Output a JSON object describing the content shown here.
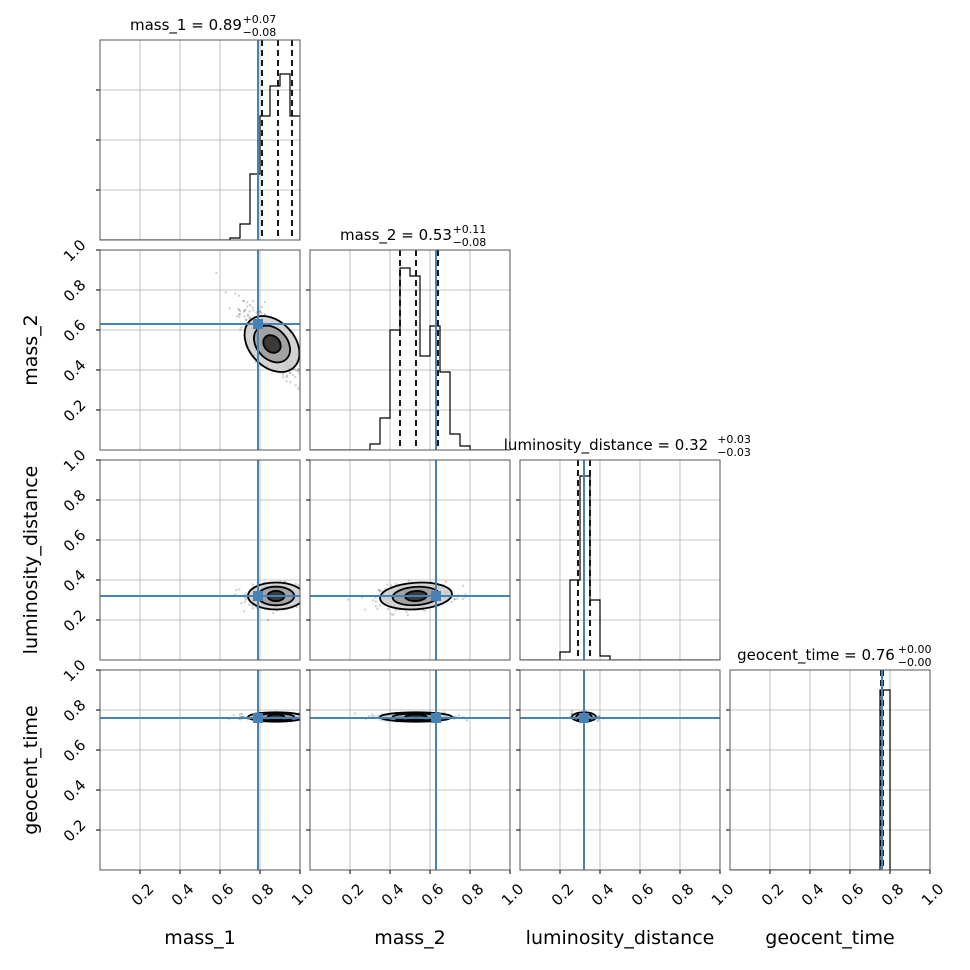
{
  "chart_data": {
    "type": "corner",
    "parameters": [
      "mass_1",
      "mass_2",
      "luminosity_distance",
      "geocent_time"
    ],
    "axis_labels": [
      "mass_1",
      "mass_2",
      "luminosity_distance",
      "geocent_time"
    ],
    "axis_range": [
      0,
      1
    ],
    "ticks": [
      0.2,
      0.4,
      0.6,
      0.8,
      1.0
    ],
    "tick_labels": [
      "0.2",
      "0.4",
      "0.6",
      "0.8",
      "1.0"
    ],
    "truths": [
      0.79,
      0.63,
      0.32,
      0.76
    ],
    "truth_color": "#4682b4",
    "grid": true,
    "marginals": [
      {
        "parameter": "mass_1",
        "title": "mass_1 = 0.89",
        "title_main": "mass_1 = 0.89",
        "title_up": "+0.07",
        "title_down": "−0.08",
        "median": 0.89,
        "err_plus": 0.07,
        "err_minus": 0.08,
        "quantiles": [
          0.81,
          0.89,
          0.96
        ],
        "hist_edges": [
          0.65,
          0.7,
          0.75,
          0.8,
          0.85,
          0.9,
          0.95,
          1.0
        ],
        "hist_counts": [
          0.01,
          0.08,
          0.33,
          0.62,
          0.77,
          0.83,
          0.62
        ],
        "hist_ylim": [
          0,
          1.0
        ],
        "ytick_values": [
          0.25,
          0.5,
          0.75
        ]
      },
      {
        "parameter": "mass_2",
        "title_main": "mass_2 = 0.53",
        "title_up": "+0.11",
        "title_down": "−0.08",
        "median": 0.53,
        "err_plus": 0.11,
        "err_minus": 0.08,
        "quantiles": [
          0.45,
          0.53,
          0.64
        ],
        "hist_edges": [
          0.3,
          0.35,
          0.4,
          0.45,
          0.5,
          0.55,
          0.6,
          0.65,
          0.7,
          0.75,
          0.8
        ],
        "hist_counts": [
          0.03,
          0.16,
          0.6,
          0.91,
          0.87,
          0.47,
          0.62,
          0.39,
          0.08,
          0.02
        ],
        "hist_ylim": [
          0,
          1.0
        ],
        "ytick_values": [
          0.2,
          0.4,
          0.6,
          0.8
        ]
      },
      {
        "parameter": "luminosity_distance",
        "title_main": "luminosity_distance = 0.32",
        "title_up": "+0.03",
        "title_down": "−0.03",
        "median": 0.32,
        "err_plus": 0.03,
        "err_minus": 0.03,
        "quantiles": [
          0.29,
          0.32,
          0.35
        ],
        "hist_edges": [
          0.2,
          0.25,
          0.3,
          0.35,
          0.4,
          0.45
        ],
        "hist_counts": [
          0.04,
          0.4,
          0.92,
          0.3,
          0.02
        ],
        "hist_ylim": [
          0,
          1.0
        ],
        "ytick_values": [
          0.2,
          0.4,
          0.6,
          0.8
        ]
      },
      {
        "parameter": "geocent_time",
        "title_main": "geocent_time = 0.76",
        "title_up": "+0.00",
        "title_down": "−0.00",
        "median": 0.76,
        "err_plus": 0.0,
        "err_minus": 0.0,
        "quantiles": [
          0.755,
          0.76,
          0.765
        ],
        "hist_edges": [
          0.75,
          0.8
        ],
        "hist_counts": [
          0.9
        ],
        "hist_ylim": [
          0,
          1.0
        ],
        "ytick_values": [
          0.2,
          0.4,
          0.6,
          0.8
        ]
      }
    ],
    "joint_panels": [
      {
        "row": 1,
        "col": 0,
        "center": [
          0.86,
          0.53
        ],
        "spread": [
          0.08,
          0.1
        ],
        "rho": -0.85
      },
      {
        "row": 2,
        "col": 0,
        "center": [
          0.88,
          0.32
        ],
        "spread": [
          0.07,
          0.03
        ],
        "rho": 0.0
      },
      {
        "row": 2,
        "col": 1,
        "center": [
          0.53,
          0.32
        ],
        "spread": [
          0.09,
          0.03
        ],
        "rho": 0.2
      },
      {
        "row": 3,
        "col": 0,
        "center": [
          0.88,
          0.765
        ],
        "spread": [
          0.07,
          0.008
        ],
        "rho": 0.0
      },
      {
        "row": 3,
        "col": 1,
        "center": [
          0.53,
          0.765
        ],
        "spread": [
          0.09,
          0.008
        ],
        "rho": 0.0
      },
      {
        "row": 3,
        "col": 2,
        "center": [
          0.32,
          0.765
        ],
        "spread": [
          0.03,
          0.008
        ],
        "rho": 0.0
      }
    ]
  }
}
